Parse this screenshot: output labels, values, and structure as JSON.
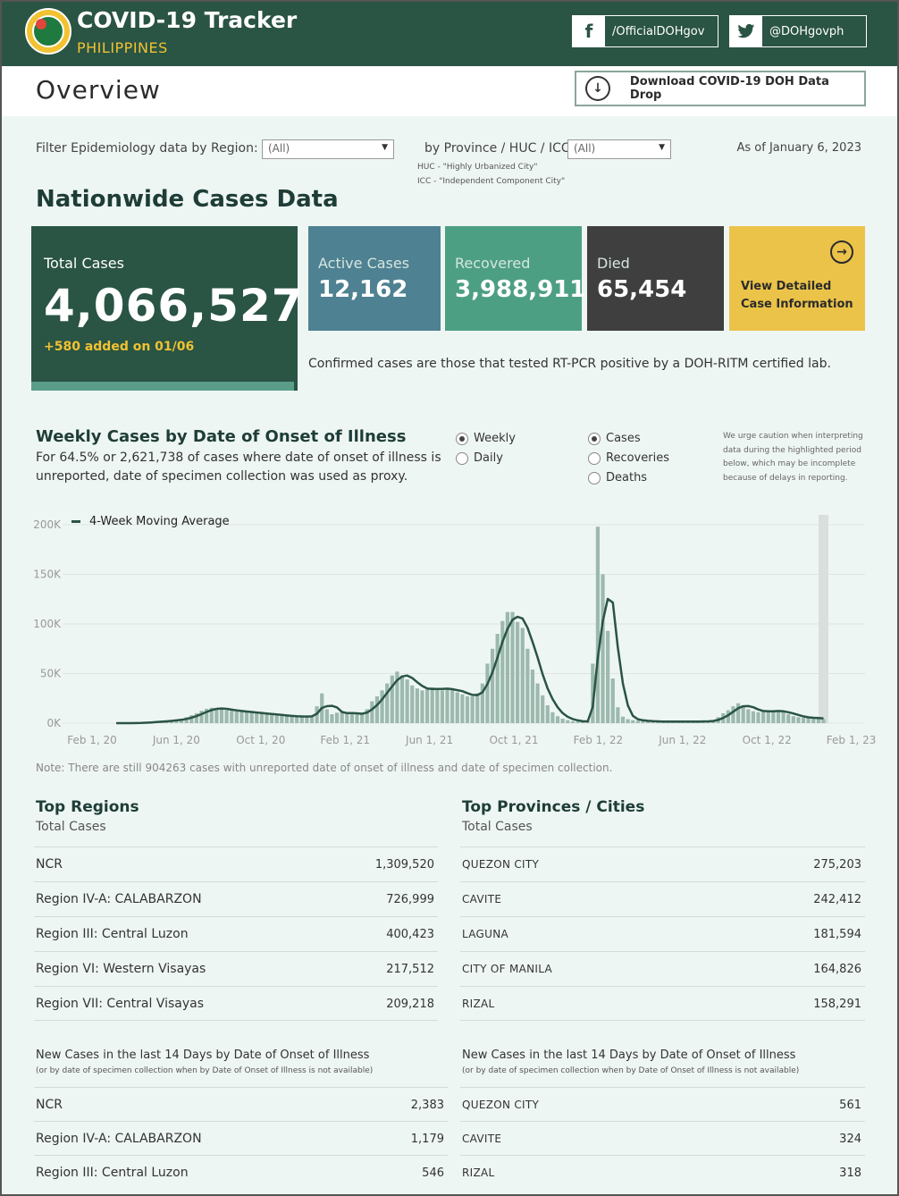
{
  "header": {
    "title": "COVID-19 Tracker",
    "subtitle": "PHILIPPINES",
    "facebook": "/OfficialDOHgov",
    "twitter": "@DOHgovph"
  },
  "page": {
    "title": "Overview",
    "download_label": "Download COVID-19 DOH Data Drop"
  },
  "filters": {
    "region_label": "Filter Epidemiology data by Region:",
    "region_value": "(All)",
    "province_label": "by Province / HUC / ICC:",
    "province_value": "(All)",
    "huc_note": "HUC - \"Highly Urbanized City\"",
    "icc_note": "ICC - \"Independent Component City\"",
    "as_of": "As of January 6, 2023"
  },
  "nationwide": {
    "title": "Nationwide Cases Data",
    "total_label": "Total Cases",
    "total_value": "4,066,527",
    "added": "+580 added on 01/06",
    "active_label": "Active Cases",
    "active_value": "12,162",
    "recovered_label": "Recovered",
    "recovered_value": "3,988,911",
    "died_label": "Died",
    "died_value": "65,454",
    "view_line1": "View Detailed",
    "view_line2": "Case Information",
    "confirmed_note": "Confirmed cases are those that tested RT-PCR positive by a DOH-RITM certified lab."
  },
  "weekly": {
    "title": "Weekly Cases by Date of Onset of Illness",
    "desc": "For 64.5% or 2,621,738 of cases where date of onset of illness is unreported, date of specimen collection was used as proxy.",
    "period_options": [
      "Weekly",
      "Daily"
    ],
    "period_selected": "Weekly",
    "measure_options": [
      "Cases",
      "Recoveries",
      "Deaths"
    ],
    "measure_selected": "Cases",
    "caution": "We urge caution when interpreting data during the highlighted period below, which may be incomplete because of delays in reporting.",
    "legend": "4-Week Moving Average",
    "note": "Note: There are still 904263 cases with unreported date of onset of illness and date of specimen collection."
  },
  "chart_data": {
    "type": "bar",
    "title": "Weekly Cases by Date of Onset of Illness",
    "ylabel": "",
    "xlabel": "",
    "ylim": [
      0,
      200000
    ],
    "y_ticks": [
      "200K",
      "150K",
      "100K",
      "50K",
      "0K"
    ],
    "x_ticks": [
      "Feb 1, 20",
      "Jun 1, 20",
      "Oct 1, 20",
      "Feb 1, 21",
      "Jun 1, 21",
      "Oct 1, 21",
      "Feb 1, 22",
      "Jun 1, 22",
      "Oct 1, 22",
      "Feb 1, 23"
    ],
    "grid": true,
    "legend_position": "top-left",
    "series": [
      {
        "name": "Cases",
        "kind": "bar",
        "color": "#9cb9ae",
        "values": [
          0,
          0,
          0,
          100,
          300,
          500,
          900,
          1200,
          1600,
          2000,
          2400,
          3000,
          3600,
          4500,
          6000,
          8000,
          10000,
          12500,
          14500,
          15500,
          15000,
          14000,
          13000,
          12500,
          12000,
          11500,
          11000,
          10500,
          10000,
          9500,
          9000,
          8500,
          8000,
          7500,
          7000,
          6800,
          6600,
          6500,
          6800,
          7500,
          17000,
          30000,
          14000,
          9000,
          10500,
          11500,
          9500,
          9000,
          9500,
          10000,
          14000,
          22000,
          27000,
          33000,
          40000,
          48000,
          52000,
          48000,
          44000,
          38000,
          35000,
          33000,
          34000,
          36000,
          35000,
          33000,
          35000,
          34000,
          31000,
          29000,
          27000,
          27000,
          30000,
          40000,
          60000,
          75000,
          90000,
          103000,
          112000,
          112000,
          102000,
          96000,
          75000,
          54000,
          40000,
          28000,
          18000,
          11000,
          7000,
          4500,
          3000,
          2000,
          1500,
          1200,
          2500,
          60000,
          198000,
          150000,
          93000,
          45000,
          16000,
          6500,
          4000,
          3000,
          2500,
          2000,
          1800,
          1700,
          1600,
          1500,
          1500,
          1500,
          1500,
          1500,
          1600,
          1600,
          1700,
          1800,
          2000,
          3000,
          6000,
          10000,
          13000,
          17000,
          20000,
          18000,
          14000,
          12000,
          11000,
          12000,
          13000,
          12000,
          12000,
          11000,
          9000,
          7000,
          6000,
          5500,
          5000,
          5000,
          5000,
          4000
        ]
      },
      {
        "name": "4-Week Moving Average",
        "kind": "line",
        "color": "#2a5444"
      }
    ]
  },
  "top_regions": {
    "title": "Top Regions",
    "subtitle": "Total Cases",
    "rows": [
      {
        "name": "NCR",
        "value": "1,309,520"
      },
      {
        "name": "Region IV-A: CALABARZON",
        "value": "726,999"
      },
      {
        "name": "Region III: Central Luzon",
        "value": "400,423"
      },
      {
        "name": "Region VI: Western Visayas",
        "value": "217,512"
      },
      {
        "name": "Region VII: Central Visayas",
        "value": "209,218"
      }
    ],
    "new_title": "New Cases in the last 14 Days by Date of Onset of Illness",
    "new_note": "(or by date of specimen collection when by Date of Onset of Illness is not available)",
    "new_rows": [
      {
        "name": "NCR",
        "value": "2,383"
      },
      {
        "name": "Region IV-A: CALABARZON",
        "value": "1,179"
      },
      {
        "name": "Region III: Central Luzon",
        "value": "546"
      }
    ]
  },
  "top_provinces": {
    "title": "Top Provinces / Cities",
    "subtitle": "Total Cases",
    "rows": [
      {
        "name": "QUEZON CITY",
        "value": "275,203"
      },
      {
        "name": "CAVITE",
        "value": "242,412"
      },
      {
        "name": "LAGUNA",
        "value": "181,594"
      },
      {
        "name": "CITY OF MANILA",
        "value": "164,826"
      },
      {
        "name": "RIZAL",
        "value": "158,291"
      }
    ],
    "new_title": "New Cases in the last 14 Days by Date of Onset of Illness",
    "new_note": "(or by date of specimen collection when by Date of Onset of Illness is not available)",
    "new_rows": [
      {
        "name": "QUEZON CITY",
        "value": "561"
      },
      {
        "name": "CAVITE",
        "value": "324"
      },
      {
        "name": "RIZAL",
        "value": "318"
      }
    ]
  },
  "colors": {
    "brand_green": "#2a5444",
    "accent_yellow": "#f1c232",
    "active": "#4e8191",
    "recovered": "#4d9f84",
    "died": "#3f3f3f",
    "view": "#ebc349"
  }
}
